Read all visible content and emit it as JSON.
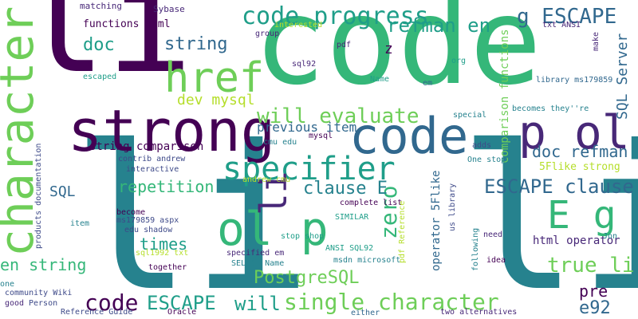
{
  "colors": {
    "background": "#ffffff",
    "purple": "#440154",
    "indigo": "#482878",
    "blue": "#3e4a89",
    "steel": "#31688e",
    "teal": "#26828e",
    "sea": "#1f9e89",
    "green": "#35b779",
    "lime": "#6ece58",
    "yellowgreen": "#b5de2b",
    "yellow": "#fde725"
  },
  "words": [
    "li",
    "code",
    "li",
    "li",
    "strong",
    "character",
    "code",
    "href",
    "p ol",
    "code progress",
    "specifier",
    "ol p",
    "E g",
    "refman en",
    "g ESCAPE",
    "will evaluate",
    "doc",
    "string",
    "dev mysql",
    "zero",
    "SQL Server",
    "ESCAPE clause",
    "clause E",
    "repetition",
    "PostgreSQL",
    "times",
    "true li",
    "en string",
    "single character",
    "code",
    "ESCAPE",
    "will",
    "pre",
    "e92",
    "doc refman",
    "string comparison",
    "previous item",
    "html operator",
    "SQL",
    "comparison functions",
    "operator 5Flike",
    "5Flike strong",
    "functions html",
    "matching",
    "Sybase",
    "interested",
    "txt ANSI",
    "pdf",
    "group",
    "z",
    "sql92",
    "org",
    "make",
    "library ms179859",
    "em",
    "escaped",
    "Name",
    "becomes they''re",
    "special",
    "adds",
    "One stop",
    "products documentation",
    "contrib andrew",
    "interactive",
    "mysql",
    "cmu edu",
    "complete list",
    "andrew cmu",
    "us library",
    "ms179859 aspx",
    "edu shadow",
    "become",
    "stop shop",
    "item",
    "SIMILAR",
    "sql1992 txt",
    "specified em",
    "ANSI SQL92",
    "pdf Reference",
    "need",
    "Jon",
    "following",
    "SELECT Name",
    "msdn microsoft",
    "idea",
    "together",
    "one",
    "community Wiki",
    "good",
    "Person",
    "Reference Guide",
    "Oracle",
    "either",
    "two alternatives"
  ]
}
